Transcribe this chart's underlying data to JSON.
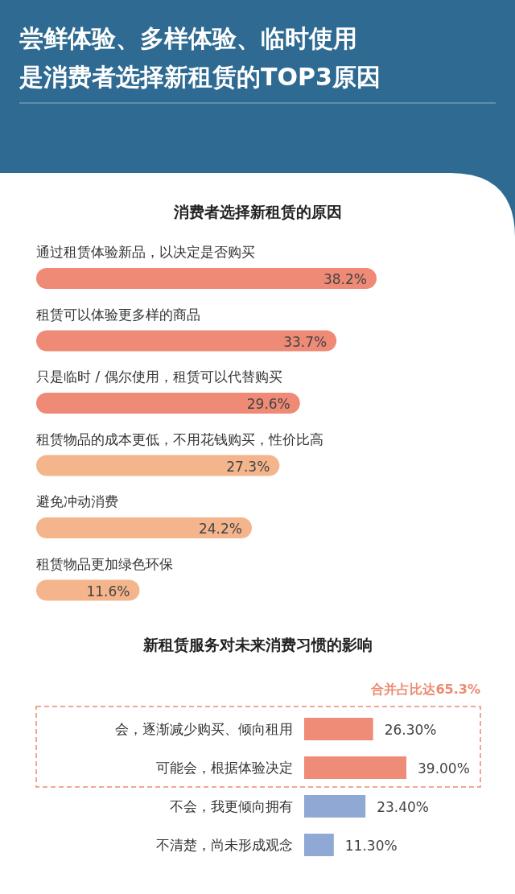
{
  "chart_data": [
    {
      "type": "bar",
      "orientation": "horizontal",
      "title": "尝鲜体验、多样体验、临时使用是消费者选择新租赁的TOP3原因",
      "subtitle": "消费者选择新租赁的原因",
      "categories": [
        "通过租赁体验新品，以决定是否购买",
        "租赁可以体验更多样的商品",
        "只是临时 / 偶尔使用，租赁可以代替购买",
        "租赁物品的成本更低，不用花钱购买，性价比高",
        "避免冲动消费",
        "租赁物品更加绿色环保"
      ],
      "values": [
        38.2,
        33.7,
        29.6,
        27.3,
        24.2,
        11.6
      ],
      "value_labels": [
        "38.2%",
        "33.7%",
        "29.6%",
        "27.3%",
        "24.2%",
        "11.6%"
      ],
      "colors": [
        "#ee8a76",
        "#ee8a76",
        "#ee8a76",
        "#f4b48c",
        "#f4b48c",
        "#f4b48c"
      ]
    },
    {
      "type": "bar",
      "orientation": "horizontal",
      "title": "新租赁服务对未来消费习惯的影响",
      "annotations": [
        "合并占比达65.3%"
      ],
      "categories": [
        "会，逐渐减少购买、倾向租用",
        "可能会，根据体验决定",
        "不会，我更倾向拥有",
        "不清楚，尚未形成观念"
      ],
      "values": [
        26.3,
        39.0,
        23.4,
        11.3
      ],
      "value_labels": [
        "26.30%",
        "39.00%",
        "23.40%",
        "11.30%"
      ],
      "colors": [
        "#ef8c78",
        "#ef8c78",
        "#8fa8d4",
        "#8fa8d4"
      ]
    }
  ]
}
